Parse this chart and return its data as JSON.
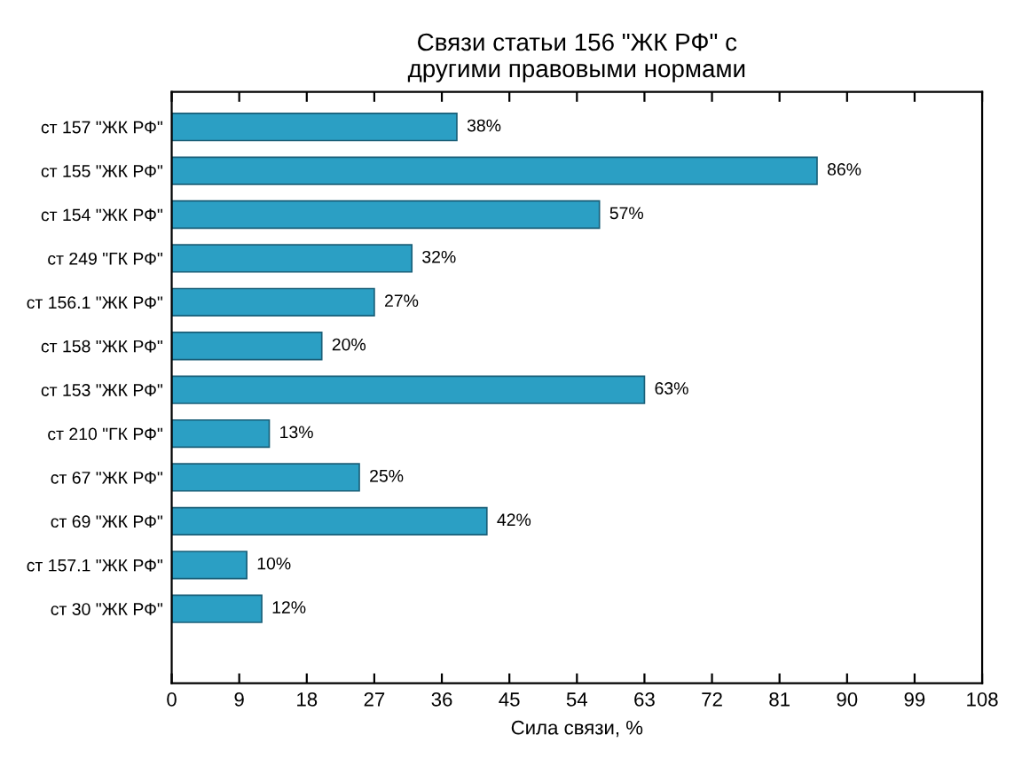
{
  "chart_data": {
    "type": "bar",
    "orientation": "horizontal",
    "title": "Связи статьи 156 \"ЖК РФ\" с\nдругими правовыми нормами",
    "xlabel": "Сила связи, %",
    "categories": [
      "ст 157 \"ЖК РФ\"",
      "ст 155 \"ЖК РФ\"",
      "ст 154 \"ЖК РФ\"",
      "ст 249 \"ГК РФ\"",
      "ст 156.1 \"ЖК РФ\"",
      "ст 158 \"ЖК РФ\"",
      "ст 153 \"ЖК РФ\"",
      "ст 210 \"ГК РФ\"",
      "ст 67 \"ЖК РФ\"",
      "ст 69 \"ЖК РФ\"",
      "ст 157.1 \"ЖК РФ\"",
      "ст 30 \"ЖК РФ\""
    ],
    "values": [
      38,
      86,
      57,
      32,
      27,
      20,
      63,
      13,
      25,
      42,
      10,
      12
    ],
    "value_labels": [
      "38%",
      "86%",
      "57%",
      "32%",
      "27%",
      "20%",
      "63%",
      "13%",
      "25%",
      "42%",
      "10%",
      "12%"
    ],
    "color": "#2b9fc4",
    "xlim": [
      0,
      108
    ],
    "xticks": [
      0,
      9,
      18,
      27,
      36,
      45,
      54,
      63,
      72,
      81,
      90,
      99,
      108
    ],
    "grid": false,
    "legend": false
  }
}
